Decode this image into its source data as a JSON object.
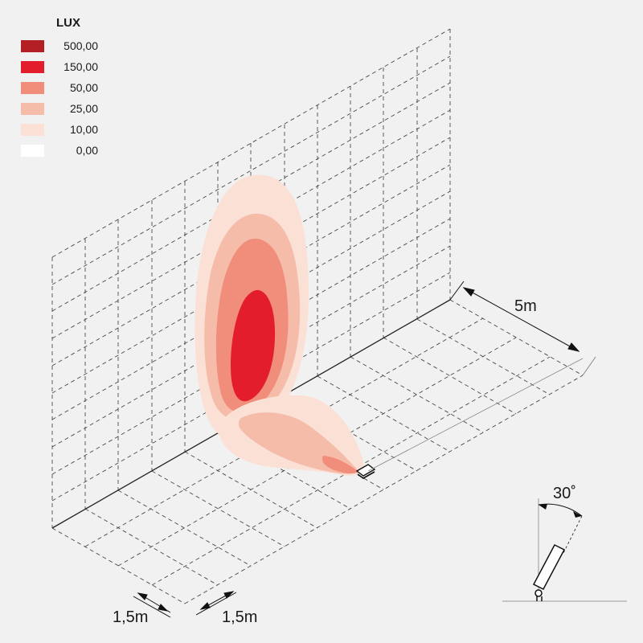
{
  "legend": {
    "title": "LUX",
    "entries": [
      {
        "value": "500,00",
        "color": "#b31f24"
      },
      {
        "value": "150,00",
        "color": "#e41d2d"
      },
      {
        "value": "50,00",
        "color": "#f08e7b"
      },
      {
        "value": "25,00",
        "color": "#f5bca9"
      },
      {
        "value": "10,00",
        "color": "#fbe0d6"
      },
      {
        "value": "0,00",
        "color": "#ffffff"
      }
    ]
  },
  "dimensions": {
    "depth": "5m",
    "grid_step_a": "1,5m",
    "grid_step_b": "1,5m",
    "tilt_angle": "30˚"
  },
  "colors": {
    "background": "#f1f1f1",
    "grid": "#4a4a4a",
    "fixture": "#1a1a1a"
  }
}
